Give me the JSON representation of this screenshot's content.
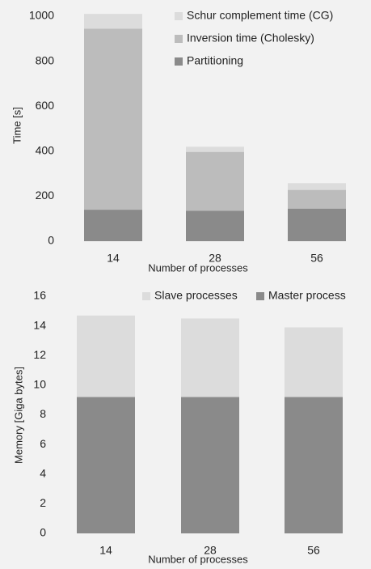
{
  "colors": {
    "background": "#f2f2f2",
    "light": "#dcdcdc",
    "mid": "#bcbcbc",
    "dark": "#8a8a8a"
  },
  "chart_data": [
    {
      "type": "bar",
      "stacked": true,
      "categories": [
        "14",
        "28",
        "56"
      ],
      "series": [
        {
          "name": "Partitioning",
          "values": [
            140,
            135,
            145
          ],
          "color": "#8a8a8a"
        },
        {
          "name": "Inversion time (Cholesky)",
          "values": [
            805,
            262,
            83
          ],
          "color": "#bcbcbc"
        },
        {
          "name": "Schur complement time (CG)",
          "values": [
            65,
            23,
            30
          ],
          "color": "#dcdcdc"
        }
      ],
      "legend_order": [
        "Schur complement time (CG)",
        "Inversion time (Cholesky)",
        "Partitioning"
      ],
      "legend_position": "top-right",
      "xlabel": "Number of processes",
      "ylabel": "Time [s]",
      "ylim": [
        0,
        1000
      ],
      "yticks": [
        "0",
        "200",
        "400",
        "600",
        "800",
        "1000"
      ],
      "grid": false
    },
    {
      "type": "bar",
      "stacked": true,
      "categories": [
        "14",
        "28",
        "56"
      ],
      "series": [
        {
          "name": "Master process",
          "values": [
            9.2,
            9.2,
            9.2
          ],
          "color": "#8a8a8a"
        },
        {
          "name": "Slave processes",
          "values": [
            5.5,
            5.3,
            4.7
          ],
          "color": "#dcdcdc"
        }
      ],
      "legend_order": [
        "Slave processes",
        "Master process"
      ],
      "legend_position": "top",
      "xlabel": "Number of processes",
      "ylabel": "Memory [Giga bytes]",
      "ylim": [
        0,
        16
      ],
      "yticks": [
        "0",
        "2",
        "4",
        "6",
        "8",
        "10",
        "12",
        "14",
        "16"
      ],
      "grid": false
    }
  ]
}
